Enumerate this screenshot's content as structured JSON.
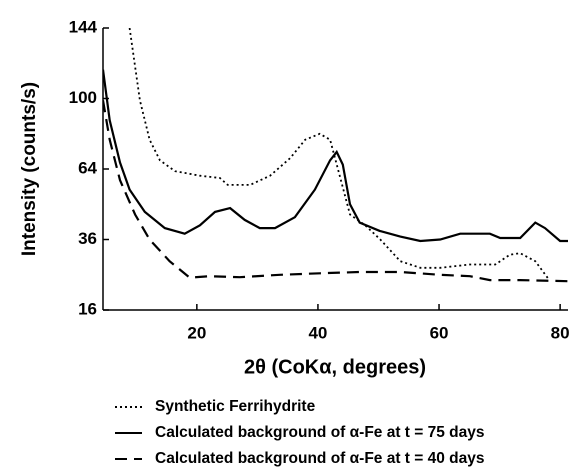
{
  "chart_data": {
    "type": "line",
    "x_label": "2θ (CoKα, degrees)",
    "y_label": "Intensity (counts/s)",
    "xlim": [
      4.5,
      81.3
    ],
    "xticks": [
      20,
      40,
      60,
      80
    ],
    "ylim": [
      16,
      144
    ],
    "yticks": [
      16,
      36,
      64,
      100,
      144
    ],
    "yscale": "sqrt",
    "grid": false,
    "series": [
      {
        "name": "Synthetic Ferrihydrite",
        "color": "#000000",
        "dash": "dotted",
        "x": [
          8.9,
          10.6,
          12.2,
          13.9,
          16.4,
          20.5,
          23.8,
          25.1,
          28.8,
          32.1,
          35.4,
          37.9,
          40.3,
          42,
          43.6,
          45.3,
          47.8,
          50.3,
          53.6,
          56.9,
          60.2,
          65.1,
          69.3,
          71.7,
          73.4,
          75.9,
          78
        ],
        "values": [
          144,
          99,
          78,
          68,
          63,
          61,
          60,
          57,
          57,
          61,
          69,
          78,
          81,
          78,
          61,
          45,
          41,
          36,
          29,
          27,
          27,
          28,
          28,
          31,
          31.5,
          29,
          24
        ]
      },
      {
        "name": "Calculated background of α-Fe at t = 75 days",
        "color": "#000000",
        "dash": "solid",
        "x": [
          4.5,
          5.6,
          7.3,
          8.9,
          11.4,
          14.7,
          18,
          20.5,
          23,
          25.5,
          27.9,
          30.4,
          32.9,
          36.2,
          39.5,
          42,
          43.1,
          44.1,
          45.3,
          46.9,
          50.2,
          53.6,
          56.9,
          60.2,
          63.5,
          68.4,
          70.1,
          73.4,
          75.9,
          77.5,
          80,
          81.3
        ],
        "values": [
          117,
          88,
          67,
          55,
          46,
          40,
          38,
          41,
          46,
          47.5,
          43,
          40,
          40,
          44,
          55,
          68,
          72,
          66,
          49,
          42,
          39,
          37,
          35.5,
          36,
          38,
          38,
          36.5,
          36.5,
          42,
          40,
          35.5,
          35.5
        ]
      },
      {
        "name": "Calculated background of α-Fe at t = 40 days",
        "color": "#000000",
        "dash": "dashed",
        "x": [
          4.5,
          5.6,
          7.3,
          9.8,
          12.2,
          15.5,
          18.8,
          22.1,
          27.1,
          33.7,
          40.3,
          46.9,
          53.6,
          60.2,
          65.1,
          68.4,
          73.4,
          81.3
        ],
        "values": [
          99,
          78,
          59,
          45,
          36,
          29,
          24.2,
          24.6,
          24.3,
          25,
          25.4,
          25.8,
          25.8,
          25,
          24.6,
          23.5,
          23.5,
          23.2
        ]
      }
    ]
  }
}
